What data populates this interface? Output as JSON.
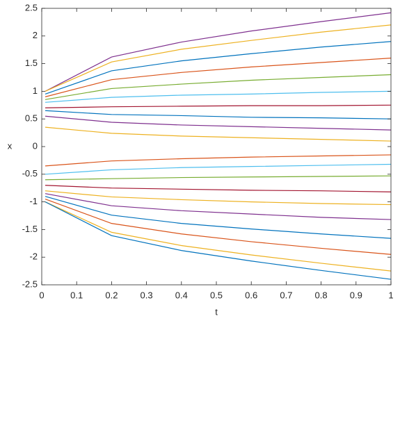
{
  "chart_data": {
    "type": "line",
    "xlabel": "t",
    "ylabel": "x",
    "x": [
      0.01,
      0.2,
      0.4,
      0.6,
      0.8,
      1
    ],
    "xlim": [
      0,
      1
    ],
    "xticks": [
      0,
      0.1,
      0.2,
      0.3,
      0.4,
      0.5,
      0.6,
      0.7,
      0.8,
      0.9,
      1
    ],
    "ylim": [
      -2.5,
      2.5
    ],
    "yticks": [
      -2.5,
      -2,
      -1.5,
      -1,
      -0.5,
      0,
      0.5,
      1,
      1.5,
      2,
      2.5
    ],
    "grid": false,
    "series": [
      {
        "color": "#7E2F8E",
        "values": [
          1,
          1.62,
          1.89,
          2.09,
          2.26,
          2.42
        ]
      },
      {
        "color": "#EDB120",
        "values": [
          1,
          1.53,
          1.76,
          1.92,
          2.07,
          2.2
        ]
      },
      {
        "color": "#0072BD",
        "values": [
          0.95,
          1.37,
          1.55,
          1.68,
          1.8,
          1.9
        ]
      },
      {
        "color": "#D95319",
        "values": [
          0.9,
          1.21,
          1.34,
          1.44,
          1.52,
          1.6
        ]
      },
      {
        "color": "#77AC30",
        "values": [
          0.85,
          1.05,
          1.13,
          1.2,
          1.25,
          1.3
        ]
      },
      {
        "color": "#4DBEEE",
        "values": [
          0.8,
          0.89,
          0.93,
          0.95,
          0.98,
          1
        ]
      },
      {
        "color": "#A2142F",
        "values": [
          0.7,
          0.72,
          0.73,
          0.74,
          0.74,
          0.75
        ]
      },
      {
        "color": "#0072BD",
        "values": [
          0.65,
          0.58,
          0.56,
          0.53,
          0.52,
          0.5
        ]
      },
      {
        "color": "#7E2F8E",
        "values": [
          0.55,
          0.44,
          0.39,
          0.36,
          0.33,
          0.3
        ]
      },
      {
        "color": "#EDB120",
        "values": [
          0.35,
          0.24,
          0.19,
          0.16,
          0.13,
          0.1
        ]
      },
      {
        "color": "#D95319",
        "values": [
          -0.35,
          -0.26,
          -0.22,
          -0.19,
          -0.17,
          -0.15
        ]
      },
      {
        "color": "#4DBEEE",
        "values": [
          -0.5,
          -0.42,
          -0.38,
          -0.36,
          -0.34,
          -0.32
        ]
      },
      {
        "color": "#77AC30",
        "values": [
          -0.6,
          -0.58,
          -0.56,
          -0.55,
          -0.54,
          -0.53
        ]
      },
      {
        "color": "#A2142F",
        "values": [
          -0.7,
          -0.75,
          -0.77,
          -0.79,
          -0.8,
          -0.82
        ]
      },
      {
        "color": "#EDB120",
        "values": [
          -0.8,
          -0.91,
          -0.96,
          -1.0,
          -1.03,
          -1.05
        ]
      },
      {
        "color": "#7E2F8E",
        "values": [
          -0.85,
          -1.07,
          -1.16,
          -1.22,
          -1.28,
          -1.32
        ]
      },
      {
        "color": "#0072BD",
        "values": [
          -0.9,
          -1.24,
          -1.39,
          -1.49,
          -1.58,
          -1.66
        ]
      },
      {
        "color": "#D95319",
        "values": [
          -0.95,
          -1.39,
          -1.58,
          -1.72,
          -1.84,
          -1.95
        ]
      },
      {
        "color": "#EDB120",
        "values": [
          -1,
          -1.55,
          -1.79,
          -1.96,
          -2.11,
          -2.25
        ]
      },
      {
        "color": "#0072BD",
        "values": [
          -1,
          -1.61,
          -1.88,
          -2.07,
          -2.24,
          -2.4
        ]
      }
    ]
  }
}
